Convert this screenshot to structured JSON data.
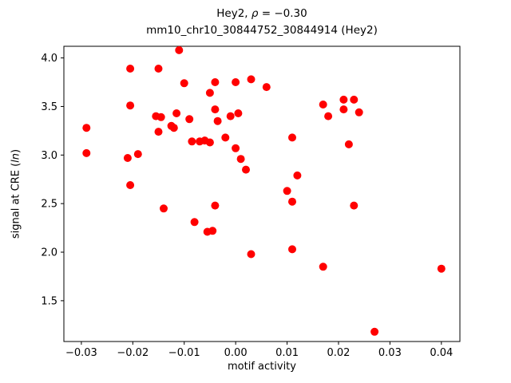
{
  "figure": {
    "title_line1_prefix": "Hey2, ",
    "title_rho": "ρ",
    "title_line1_suffix": " = −0.30",
    "title_line2": "mm10_chr10_30844752_30844914 (Hey2)",
    "xlabel": "motif activity",
    "ylabel_prefix": "signal at CRE (",
    "ylabel_italic": "ln",
    "ylabel_suffix": ")"
  },
  "chart_data": {
    "type": "scatter",
    "title": "Hey2, ρ = −0.30\nmm10_chr10_30844752_30844914 (Hey2)",
    "xlabel": "motif activity",
    "ylabel": "signal at CRE (ln)",
    "legend": null,
    "grid": false,
    "marker_color": "#ff0000",
    "marker_radius": 5,
    "xlim": [
      -0.0334,
      0.0436
    ],
    "ylim": [
      1.08,
      4.12
    ],
    "xticks": [
      -0.03,
      -0.02,
      -0.01,
      0.0,
      0.01,
      0.02,
      0.03,
      0.04
    ],
    "xtick_labels": [
      "−0.03",
      "−0.02",
      "−0.01",
      "0.00",
      "0.01",
      "0.02",
      "0.03",
      "0.04"
    ],
    "yticks": [
      1.5,
      2.0,
      2.5,
      3.0,
      3.5,
      4.0
    ],
    "ytick_labels": [
      "1.5",
      "2.0",
      "2.5",
      "3.0",
      "3.5",
      "4.0"
    ],
    "points": [
      [
        -0.029,
        3.28
      ],
      [
        -0.029,
        3.02
      ],
      [
        -0.0205,
        3.89
      ],
      [
        -0.0205,
        3.51
      ],
      [
        -0.021,
        2.97
      ],
      [
        -0.0205,
        2.69
      ],
      [
        -0.019,
        3.01
      ],
      [
        -0.015,
        3.89
      ],
      [
        -0.0155,
        3.4
      ],
      [
        -0.0145,
        3.39
      ],
      [
        -0.015,
        3.24
      ],
      [
        -0.014,
        2.45
      ],
      [
        -0.0125,
        3.3
      ],
      [
        -0.012,
        3.28
      ],
      [
        -0.0115,
        3.43
      ],
      [
        -0.011,
        4.08
      ],
      [
        -0.01,
        3.74
      ],
      [
        -0.009,
        3.37
      ],
      [
        -0.0085,
        3.14
      ],
      [
        -0.008,
        2.31
      ],
      [
        -0.007,
        3.14
      ],
      [
        -0.006,
        3.15
      ],
      [
        -0.0055,
        2.21
      ],
      [
        -0.005,
        3.64
      ],
      [
        -0.005,
        3.13
      ],
      [
        -0.0045,
        2.22
      ],
      [
        -0.004,
        3.75
      ],
      [
        -0.004,
        3.47
      ],
      [
        -0.004,
        2.48
      ],
      [
        -0.0035,
        3.35
      ],
      [
        -0.002,
        3.18
      ],
      [
        -0.001,
        3.4
      ],
      [
        0.0,
        3.75
      ],
      [
        0.0,
        3.07
      ],
      [
        0.0005,
        3.43
      ],
      [
        0.001,
        2.96
      ],
      [
        0.002,
        2.85
      ],
      [
        0.003,
        3.78
      ],
      [
        0.003,
        1.98
      ],
      [
        0.006,
        3.7
      ],
      [
        0.01,
        2.63
      ],
      [
        0.011,
        3.18
      ],
      [
        0.011,
        2.52
      ],
      [
        0.011,
        2.03
      ],
      [
        0.012,
        2.79
      ],
      [
        0.017,
        3.52
      ],
      [
        0.017,
        1.85
      ],
      [
        0.018,
        3.4
      ],
      [
        0.021,
        3.57
      ],
      [
        0.021,
        3.47
      ],
      [
        0.022,
        3.11
      ],
      [
        0.023,
        3.57
      ],
      [
        0.023,
        2.48
      ],
      [
        0.024,
        3.44
      ],
      [
        0.027,
        1.18
      ],
      [
        0.04,
        1.83
      ]
    ]
  }
}
